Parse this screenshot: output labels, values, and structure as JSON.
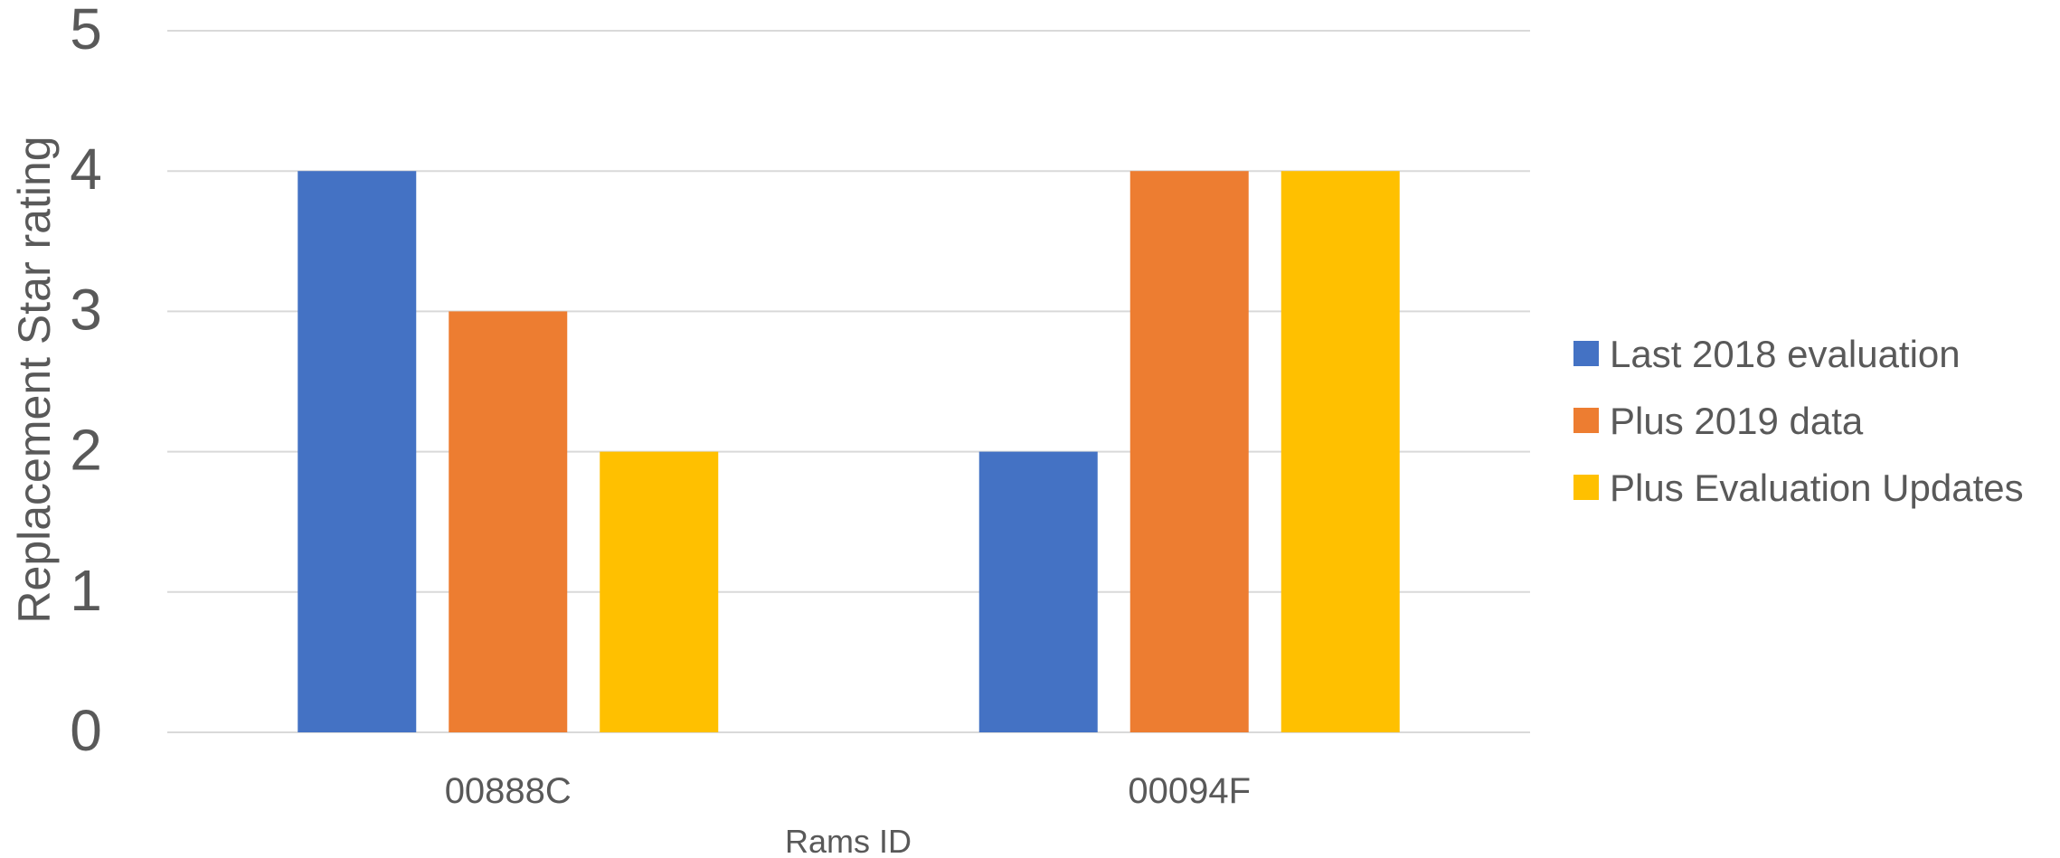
{
  "chart_data": {
    "type": "bar",
    "title": "",
    "xlabel": "Rams ID",
    "ylabel": "Replacement Star rating",
    "categories": [
      "00888C",
      "00094F"
    ],
    "series": [
      {
        "name": "Last 2018 evaluation",
        "values": [
          4,
          2
        ],
        "color": "#4472C4"
      },
      {
        "name": "Plus 2019 data",
        "values": [
          3,
          4
        ],
        "color": "#ED7D31"
      },
      {
        "name": "Plus Evaluation Updates",
        "values": [
          2,
          4
        ],
        "color": "#FFC000"
      }
    ],
    "ylim": [
      0,
      5
    ],
    "yticks": [
      0,
      1,
      2,
      3,
      4,
      5
    ],
    "grid": true,
    "legend_position": "right",
    "gridline_color": "#D9D9D9"
  }
}
